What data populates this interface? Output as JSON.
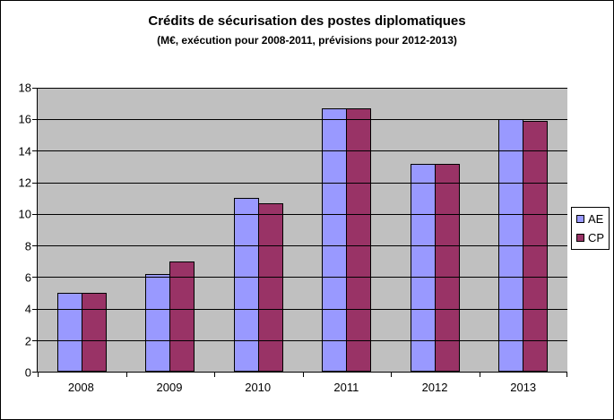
{
  "title": "Crédits de sécurisation des postes diplomatiques",
  "subtitle": "(M€, exécution pour 2008-2011, prévisions pour 2012-2013)",
  "chart_data": {
    "type": "bar",
    "title": "Crédits de sécurisation des postes diplomatiques",
    "subtitle": "(M€, exécution pour 2008-2011, prévisions pour 2012-2013)",
    "categories": [
      "2008",
      "2009",
      "2010",
      "2011",
      "2012",
      "2013"
    ],
    "series": [
      {
        "name": "AE",
        "color": "#9999FF",
        "values": [
          5,
          6.2,
          11,
          16.7,
          13.2,
          16
        ]
      },
      {
        "name": "CP",
        "color": "#993366",
        "values": [
          5,
          7,
          10.7,
          16.7,
          13.2,
          15.9
        ]
      }
    ],
    "xlabel": "",
    "ylabel": "",
    "ylim": [
      0,
      18
    ],
    "ytick_step": 2,
    "grid": true,
    "legend_position": "right",
    "plot_bg": "#C0C0C0"
  }
}
